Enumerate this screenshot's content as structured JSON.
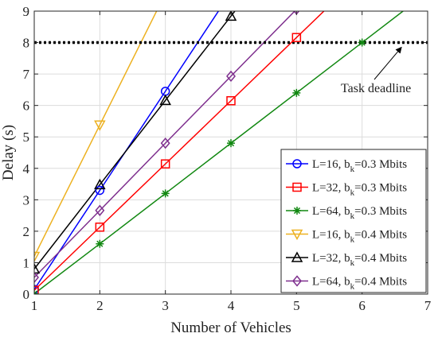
{
  "chart_data": {
    "type": "line",
    "xlabel": "Number of Vehicles",
    "ylabel": "Delay (s)",
    "xlim": [
      1,
      7
    ],
    "ylim": [
      0,
      9
    ],
    "xticks": [
      "1",
      "2",
      "3",
      "4",
      "5",
      "6",
      "7"
    ],
    "yticks": [
      "0",
      "1",
      "2",
      "3",
      "4",
      "5",
      "6",
      "7",
      "8",
      "9"
    ],
    "grid": true,
    "legend_position": "bottom-right",
    "series": [
      {
        "legend": "L=16, b",
        "sub": "k",
        "suffix": "=0.3 Mbits",
        "color": "#0000ff",
        "marker": "circle",
        "x": [
          1,
          2,
          3,
          4
        ],
        "y": [
          0.15,
          3.3,
          6.45,
          9.6
        ]
      },
      {
        "legend": "L=32, b",
        "sub": "k",
        "suffix": "=0.3 Mbits",
        "color": "#ff0000",
        "marker": "square",
        "x": [
          1,
          2,
          3,
          4,
          5,
          6
        ],
        "y": [
          0.12,
          2.13,
          4.14,
          6.15,
          8.16,
          10.17
        ]
      },
      {
        "legend": "L=64, b",
        "sub": "k",
        "suffix": "=0.3 Mbits",
        "color": "#118811",
        "marker": "star",
        "x": [
          1,
          2,
          3,
          4,
          5,
          6,
          7
        ],
        "y": [
          0.01,
          1.6,
          3.2,
          4.8,
          6.4,
          8.0,
          9.6
        ]
      },
      {
        "legend": "L=16, b",
        "sub": "k",
        "suffix": "=0.4 Mbits",
        "color": "#edb120",
        "marker": "triangle-down",
        "x": [
          1,
          2,
          3
        ],
        "y": [
          1.2,
          5.38,
          9.56
        ]
      },
      {
        "legend": "L=32, b",
        "sub": "k",
        "suffix": "=0.4 Mbits",
        "color": "#000000",
        "marker": "triangle-up",
        "x": [
          1,
          2,
          3,
          4,
          5
        ],
        "y": [
          0.8,
          3.48,
          6.16,
          8.84,
          11.52
        ]
      },
      {
        "legend": "L=64, b",
        "sub": "k",
        "suffix": "=0.4 Mbits",
        "color": "#7e2f8e",
        "marker": "diamond",
        "x": [
          1,
          2,
          3,
          4,
          5
        ],
        "y": [
          0.53,
          2.66,
          4.8,
          6.93,
          9.06
        ]
      }
    ],
    "reference_line": {
      "y": 8,
      "style": "dotted",
      "color": "#000000"
    },
    "annotations": [
      {
        "text": "Task deadline",
        "arrow_to": [
          6.6,
          8
        ]
      }
    ]
  }
}
